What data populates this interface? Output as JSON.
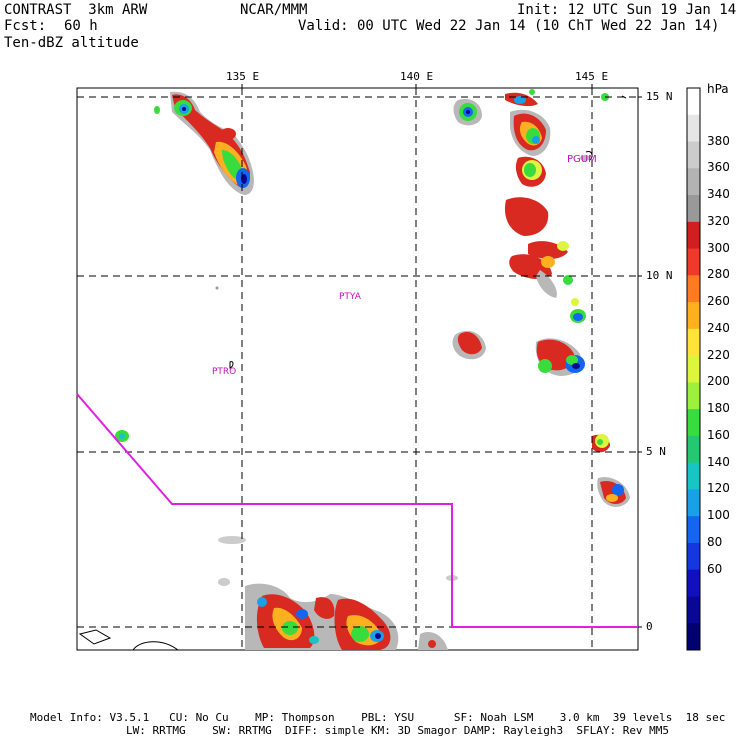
{
  "header": {
    "model": "CONTRAST  3km ARW",
    "org": "NCAR/MMM",
    "init": "Init: 12 UTC Sun 19 Jan 14",
    "fcst_label": "Fcst:",
    "fcst_value": "60 h",
    "valid": "Valid: 00 UTC Wed 22 Jan 14 (10 ChT Wed 22 Jan 14)",
    "field": "Ten-dBZ altitude"
  },
  "axes": {
    "lon_labels": [
      "135 E",
      "140 E",
      "145 E"
    ],
    "lat_labels": [
      "15 N",
      "10 N",
      "5 N",
      "0"
    ]
  },
  "stations": [
    "PGUM",
    "PTYA",
    "PTRO"
  ],
  "colorbar": {
    "unit": "hPa",
    "labels": [
      "380",
      "360",
      "340",
      "320",
      "300",
      "280",
      "260",
      "240",
      "220",
      "200",
      "180",
      "160",
      "140",
      "120",
      "100",
      "80",
      "60"
    ],
    "colors": [
      "#ffffff",
      "#e6e6e6",
      "#cccccc",
      "#b3b3b3",
      "#999999",
      "#cf1f1f",
      "#ee3a2a",
      "#ff7b22",
      "#ffb020",
      "#ffe23a",
      "#ddf53e",
      "#9ef03e",
      "#38dc3c",
      "#25c870",
      "#18c4c4",
      "#1aa0e6",
      "#1466ee",
      "#1438de",
      "#1010bd",
      "#080894",
      "#000070"
    ]
  },
  "footer": {
    "line1": "Model Info: V3.5.1   CU: No Cu    MP: Thompson    PBL: YSU      SF: Noah LSM    3.0 km  39 levels  18 sec",
    "line2": "LW: RRTMG    SW: RRTMG  DIFF: simple KM: 3D Smagor DAMP: Rayleigh3  SFLAY: Rev MM5"
  }
}
